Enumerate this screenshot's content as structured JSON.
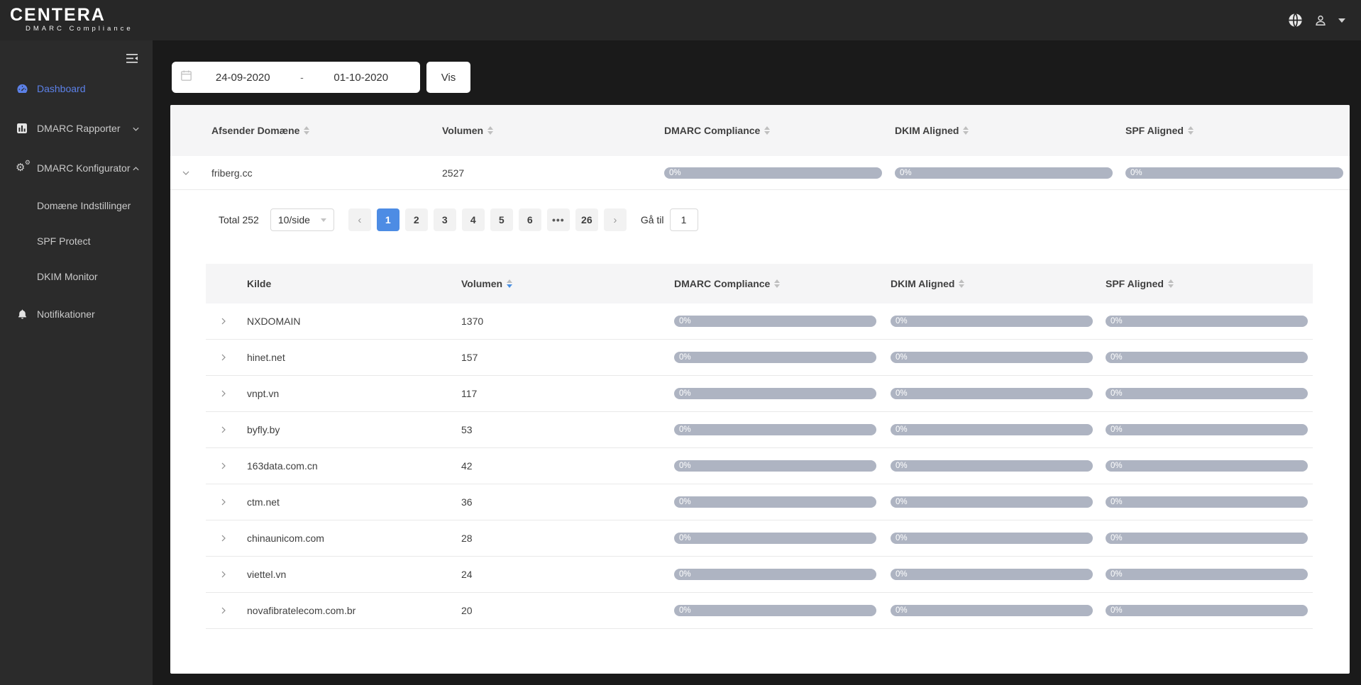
{
  "brand": {
    "name": "CENTERA",
    "tagline": "DMARC Compliance"
  },
  "topbar": {
    "icons": [
      {
        "name": "globe-icon"
      },
      {
        "name": "user-icon"
      },
      {
        "name": "caret-down-icon"
      }
    ]
  },
  "sidebar": {
    "fold_icon": "menu-fold-icon",
    "items": [
      {
        "id": "dashboard",
        "label": "Dashboard",
        "icon": "dashboard-icon",
        "active": true
      },
      {
        "id": "dmarc-rapporter",
        "label": "DMARC Rapporter",
        "icon": "bar-chart-icon",
        "chevron": "down"
      },
      {
        "id": "dmarc-konfigurator",
        "label": "DMARC Konfigurator",
        "icon": "gear-icon",
        "chevron": "up"
      },
      {
        "id": "domaene-indstillinger",
        "label": "Domæne Indstillinger",
        "sub": true
      },
      {
        "id": "spf-protect",
        "label": "SPF Protect",
        "sub": true
      },
      {
        "id": "dkim-monitor",
        "label": "DKIM Monitor",
        "sub": true
      },
      {
        "id": "notifikationer",
        "label": "Notifikationer",
        "icon": "bell-icon"
      }
    ]
  },
  "filters": {
    "date_from": "24-09-2020",
    "date_separator": "-",
    "date_to": "01-10-2020",
    "view_button": "Vis"
  },
  "sender_table": {
    "headers": [
      {
        "label": "Afsender Domæne",
        "sorter": "neutral"
      },
      {
        "label": "Volumen",
        "sorter": "neutral"
      },
      {
        "label": "DMARC Compliance",
        "sorter": "neutral"
      },
      {
        "label": "DKIM Aligned",
        "sorter": "neutral"
      },
      {
        "label": "SPF Aligned",
        "sorter": "neutral"
      }
    ],
    "rows": [
      {
        "name": "friberg.cc",
        "volume": "2527",
        "dmarc": "0%",
        "dkim": "0%",
        "spf": "0%",
        "expanded": true
      }
    ]
  },
  "pagination": {
    "total_label": "Total 252",
    "page_size": "10/side",
    "prev": "‹",
    "next": "›",
    "pages": [
      "1",
      "2",
      "3",
      "4",
      "5",
      "6"
    ],
    "active_page": "1",
    "ellipsis": "•••",
    "last_page": "26",
    "goto_label": "Gå til",
    "goto_value": "1"
  },
  "source_table": {
    "headers": [
      {
        "label": "Kilde",
        "sorter": "none"
      },
      {
        "label": "Volumen",
        "sorter": "desc"
      },
      {
        "label": "DMARC Compliance",
        "sorter": "neutral"
      },
      {
        "label": "DKIM Aligned",
        "sorter": "neutral"
      },
      {
        "label": "SPF Aligned",
        "sorter": "neutral"
      }
    ],
    "rows": [
      {
        "name": "NXDOMAIN",
        "volume": "1370",
        "dmarc": "0%",
        "dkim": "0%",
        "spf": "0%"
      },
      {
        "name": "hinet.net",
        "volume": "157",
        "dmarc": "0%",
        "dkim": "0%",
        "spf": "0%"
      },
      {
        "name": "vnpt.vn",
        "volume": "117",
        "dmarc": "0%",
        "dkim": "0%",
        "spf": "0%"
      },
      {
        "name": "byfly.by",
        "volume": "53",
        "dmarc": "0%",
        "dkim": "0%",
        "spf": "0%"
      },
      {
        "name": "163data.com.cn",
        "volume": "42",
        "dmarc": "0%",
        "dkim": "0%",
        "spf": "0%"
      },
      {
        "name": "ctm.net",
        "volume": "36",
        "dmarc": "0%",
        "dkim": "0%",
        "spf": "0%"
      },
      {
        "name": "chinaunicom.com",
        "volume": "28",
        "dmarc": "0%",
        "dkim": "0%",
        "spf": "0%"
      },
      {
        "name": "viettel.vn",
        "volume": "24",
        "dmarc": "0%",
        "dkim": "0%",
        "spf": "0%"
      },
      {
        "name": "novafibratelecom.com.br",
        "volume": "20",
        "dmarc": "0%",
        "dkim": "0%",
        "spf": "0%"
      }
    ]
  },
  "colors": {
    "topbar_bg": "#272727",
    "sidebar_bg": "#2b2b2b",
    "main_bg": "#1a1a1a",
    "sidebar_active": "#5c81e8",
    "pagination_active": "#4d8ce4",
    "sort_active": "#4a90e2",
    "progress_bar": "#aeb4c2",
    "table_header_bg": "#f5f5f6"
  }
}
